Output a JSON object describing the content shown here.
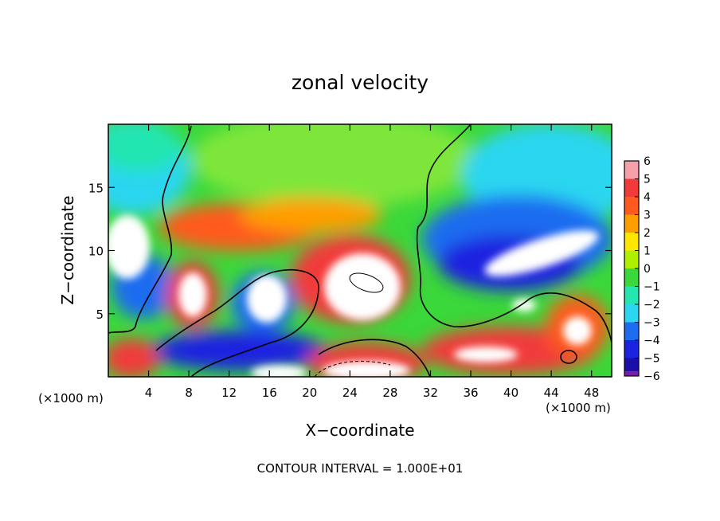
{
  "chart_data": {
    "type": "heatmap",
    "title": "zonal velocity",
    "xlabel": "X−coordinate",
    "ylabel": "Z−coordinate",
    "x_unit_left": "(×1000 m)",
    "x_unit_right": "(×1000 m)",
    "footer": "CONTOUR INTERVAL = 1.000E+01",
    "xlim": [
      0,
      50
    ],
    "ylim": [
      0,
      20
    ],
    "x_ticks": [
      4,
      8,
      12,
      16,
      20,
      24,
      28,
      32,
      36,
      40,
      44,
      48
    ],
    "y_ticks": [
      5,
      10,
      15
    ],
    "colorbar": {
      "range": [
        -6,
        6
      ],
      "tick_labels": [
        "6",
        "5",
        "4",
        "3",
        "2",
        "1",
        "0",
        "−1",
        "−2",
        "−3",
        "−4",
        "−5",
        "−6"
      ],
      "levels": [
        {
          "value": 5.5,
          "color": "#f5a0a8"
        },
        {
          "value": 4.5,
          "color": "#f23a3a"
        },
        {
          "value": 3.5,
          "color": "#ff5a1e"
        },
        {
          "value": 2.5,
          "color": "#ff9e00"
        },
        {
          "value": 1.5,
          "color": "#ffe600"
        },
        {
          "value": 0.5,
          "color": "#aef000"
        },
        {
          "value": -0.5,
          "color": "#3ad83a"
        },
        {
          "value": -1.5,
          "color": "#24e6b0"
        },
        {
          "value": -2.5,
          "color": "#2ad6f0"
        },
        {
          "value": -3.5,
          "color": "#1e6cf0"
        },
        {
          "value": -4.5,
          "color": "#1a24e0"
        },
        {
          "value": -5.5,
          "color": "#1a0fa8"
        },
        {
          "value": -6.0,
          "color": "#7a1aa8"
        }
      ]
    },
    "grid": false
  }
}
